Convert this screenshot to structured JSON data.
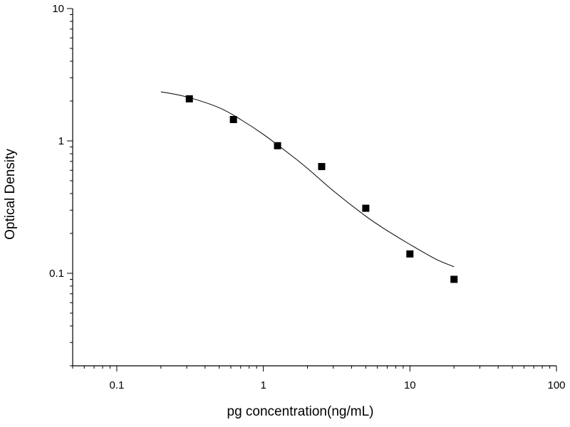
{
  "chart_data": {
    "type": "scatter",
    "title": "",
    "xlabel": "pg concentration(ng/mL)",
    "ylabel": "Optical Density",
    "xscale": "log",
    "yscale": "log",
    "xlim": [
      0.05,
      100
    ],
    "ylim": [
      0.02,
      10
    ],
    "grid": false,
    "legend": "none",
    "marker": "square",
    "color": "#000000",
    "x_ticks": [
      {
        "value": 0.1,
        "label": "0.1"
      },
      {
        "value": 1,
        "label": "1"
      },
      {
        "value": 10,
        "label": "10"
      },
      {
        "value": 100,
        "label": "100"
      }
    ],
    "y_ticks": [
      {
        "value": 0.1,
        "label": "0.1"
      },
      {
        "value": 1,
        "label": "1"
      },
      {
        "value": 10,
        "label": "10"
      }
    ],
    "points": [
      {
        "x": 0.3125,
        "y": 2.08
      },
      {
        "x": 0.625,
        "y": 1.45
      },
      {
        "x": 1.25,
        "y": 0.92
      },
      {
        "x": 2.5,
        "y": 0.64
      },
      {
        "x": 5,
        "y": 0.31
      },
      {
        "x": 10,
        "y": 0.14
      },
      {
        "x": 20,
        "y": 0.09
      }
    ],
    "fit_curve": [
      {
        "x": 0.2,
        "y": 2.35
      },
      {
        "x": 0.3,
        "y": 2.15
      },
      {
        "x": 0.5,
        "y": 1.78
      },
      {
        "x": 0.7,
        "y": 1.45
      },
      {
        "x": 1.0,
        "y": 1.12
      },
      {
        "x": 1.5,
        "y": 0.8
      },
      {
        "x": 2.0,
        "y": 0.62
      },
      {
        "x": 3.0,
        "y": 0.42
      },
      {
        "x": 5.0,
        "y": 0.27
      },
      {
        "x": 7.0,
        "y": 0.21
      },
      {
        "x": 10.0,
        "y": 0.165
      },
      {
        "x": 15.0,
        "y": 0.128
      },
      {
        "x": 20.0,
        "y": 0.112
      }
    ]
  }
}
